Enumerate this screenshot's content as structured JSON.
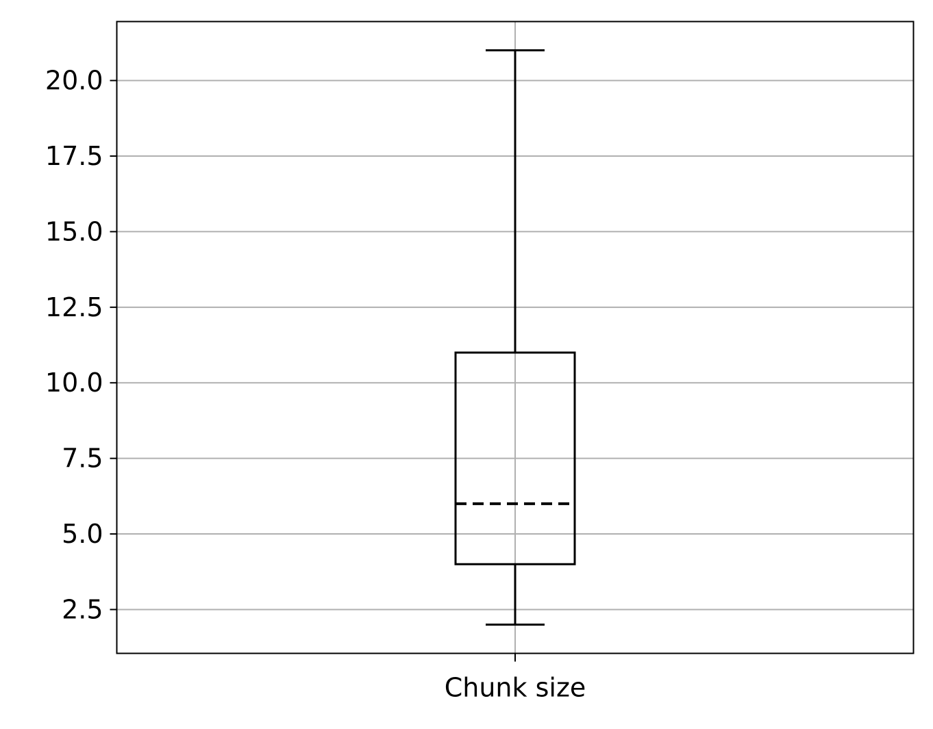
{
  "chart_data": {
    "type": "box",
    "title": "",
    "xlabel": "",
    "ylabel": "",
    "categories": [
      "Chunk size"
    ],
    "boxes": [
      {
        "category": "Chunk size",
        "whisker_low": 2,
        "q1": 4,
        "median": 6,
        "q3": 11,
        "whisker_high": 21
      }
    ],
    "ylim": [
      1.05,
      21.95
    ],
    "yticks": [
      2.5,
      5.0,
      7.5,
      10.0,
      12.5,
      15.0,
      17.5,
      20.0
    ],
    "ytick_labels": [
      "2.5",
      "5.0",
      "7.5",
      "10.0",
      "12.5",
      "15.0",
      "17.5",
      "20.0"
    ],
    "grid": true,
    "median_style": "dashed",
    "colors": {
      "grid": "#b0b0b0",
      "box": "#000000",
      "axes": "#000000"
    }
  }
}
